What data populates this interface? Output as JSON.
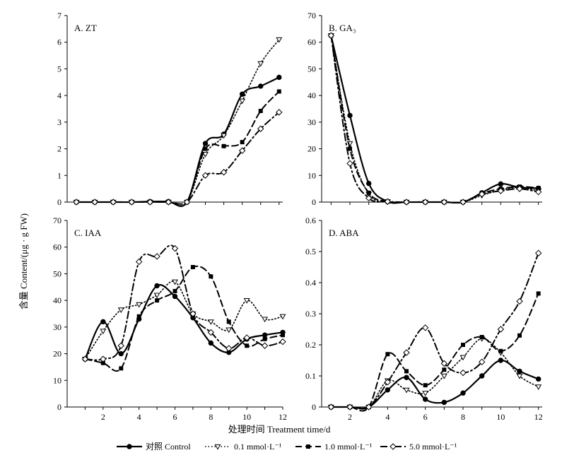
{
  "figure": {
    "ylabel": "含量 Content/(μg · g FW)",
    "xlabel": "处理时间 Treatment time/d"
  },
  "legend": [
    {
      "label": "对照 Control",
      "color": "#000000"
    },
    {
      "label": "0.1 mmol·L⁻¹",
      "color": "#000000"
    },
    {
      "label": "1.0 mmol·L⁻¹",
      "color": "#000000"
    },
    {
      "label": "5.0 mmol·L⁻¹",
      "color": "#000000"
    }
  ],
  "chart_data": [
    {
      "type": "line",
      "title": "A. ZT",
      "x": [
        1,
        2,
        3,
        4,
        5,
        6,
        7,
        8,
        9,
        10,
        11,
        12
      ],
      "xticks": [],
      "yticks": [
        "0",
        "1",
        "2",
        "3",
        "4",
        "5",
        "6",
        "7"
      ],
      "xlim": [
        0.5,
        12.2
      ],
      "ylim": [
        0,
        7
      ],
      "series": [
        {
          "name": "对照 Control",
          "values": [
            0,
            0,
            0,
            0,
            0.02,
            0.02,
            0,
            2.2,
            2.55,
            4.05,
            4.35,
            4.68
          ]
        },
        {
          "name": "0.1 mmol·L⁻¹",
          "values": [
            0,
            0,
            0,
            0,
            0,
            0,
            0,
            1.8,
            2.5,
            3.8,
            5.2,
            6.1
          ]
        },
        {
          "name": "1.0 mmol·L⁻¹",
          "values": [
            0,
            0,
            0,
            0,
            0,
            0,
            0,
            2.0,
            2.1,
            2.25,
            3.42,
            4.15
          ]
        },
        {
          "name": "5.0 mmol·L⁻¹",
          "values": [
            0,
            0,
            0,
            0,
            0,
            0,
            0,
            1.0,
            1.12,
            1.93,
            2.75,
            3.37
          ]
        }
      ]
    },
    {
      "type": "line",
      "title": "B. GA₃",
      "x": [
        1,
        2,
        3,
        4,
        5,
        6,
        7,
        8,
        9,
        10,
        11,
        12
      ],
      "xticks": [],
      "yticks": [
        "0",
        "10",
        "20",
        "30",
        "40",
        "50",
        "60",
        "70"
      ],
      "xlim": [
        0.5,
        12.2
      ],
      "ylim": [
        0,
        70
      ],
      "series": [
        {
          "name": "对照 Control",
          "values": [
            62.5,
            32.5,
            7,
            0.2,
            0,
            0,
            0,
            0,
            3.5,
            6.8,
            5.5,
            5.2
          ]
        },
        {
          "name": "0.1 mmol·L⁻¹",
          "values": [
            62.5,
            22,
            3,
            0.2,
            0,
            0,
            0,
            0,
            2.5,
            4.5,
            5.5,
            4.2
          ]
        },
        {
          "name": "1.0 mmol·L⁻¹",
          "values": [
            62.5,
            20,
            3.5,
            0.2,
            0,
            0,
            0,
            0,
            3.2,
            5.0,
            5.8,
            5.3
          ]
        },
        {
          "name": "5.0 mmol·L⁻¹",
          "values": [
            62.5,
            14.5,
            1.5,
            0.2,
            0,
            0,
            0,
            0,
            3.0,
            4.2,
            5.0,
            3.8
          ]
        }
      ]
    },
    {
      "type": "line",
      "title": "C. IAA",
      "x": [
        1,
        2,
        3,
        4,
        5,
        6,
        7,
        8,
        9,
        10,
        11,
        12
      ],
      "xticks": [
        "2",
        "4",
        "6",
        "8",
        "10",
        "12"
      ],
      "yticks": [
        "0",
        "10",
        "20",
        "30",
        "40",
        "50",
        "60",
        "70"
      ],
      "xlim": [
        0,
        12
      ],
      "ylim": [
        0,
        70
      ],
      "series": [
        {
          "name": "对照 Control",
          "values": [
            18,
            32,
            20,
            33,
            45.5,
            41.5,
            33.5,
            24,
            20.5,
            25.5,
            27,
            28
          ]
        },
        {
          "name": "0.1 mmol·L⁻¹",
          "values": [
            18,
            28.5,
            36.5,
            38.5,
            42,
            47,
            35,
            32,
            29,
            40,
            33,
            34
          ]
        },
        {
          "name": "1.0 mmol·L⁻¹",
          "values": [
            18,
            16.5,
            14.5,
            34,
            40,
            43.5,
            52.5,
            49,
            32,
            23,
            25.5,
            27
          ]
        },
        {
          "name": "5.0 mmol·L⁻¹",
          "values": [
            18,
            18,
            23,
            54.5,
            56.5,
            59.5,
            35,
            28,
            22,
            26,
            23,
            24.5
          ]
        }
      ]
    },
    {
      "type": "line",
      "title": "D. ABA",
      "x": [
        1,
        2,
        3,
        4,
        5,
        6,
        7,
        8,
        9,
        10,
        11,
        12
      ],
      "xticks": [
        "2",
        "4",
        "6",
        "8",
        "10",
        "12"
      ],
      "yticks": [
        "0",
        "0.1",
        "0.2",
        "0.3",
        "0.4",
        "0.5",
        "0.6"
      ],
      "xlim": [
        0.5,
        12.2
      ],
      "ylim": [
        0,
        0.6
      ],
      "series": [
        {
          "name": "对照 Control",
          "values": [
            0,
            0,
            0,
            0.055,
            0.095,
            0.025,
            0.015,
            0.045,
            0.1,
            0.15,
            0.115,
            0.09
          ]
        },
        {
          "name": "0.1 mmol·L⁻¹",
          "values": [
            0,
            0,
            0,
            0.085,
            0.055,
            0.045,
            0.1,
            0.16,
            0.22,
            0.175,
            0.1,
            0.065
          ]
        },
        {
          "name": "1.0 mmol·L⁻¹",
          "values": [
            0,
            0,
            0,
            0.17,
            0.115,
            0.07,
            0.12,
            0.2,
            0.225,
            0.18,
            0.23,
            0.365
          ]
        },
        {
          "name": "5.0 mmol·L⁻¹",
          "values": [
            0,
            0,
            0,
            0.08,
            0.175,
            0.255,
            0.14,
            0.11,
            0.145,
            0.25,
            0.34,
            0.495
          ]
        }
      ]
    }
  ]
}
